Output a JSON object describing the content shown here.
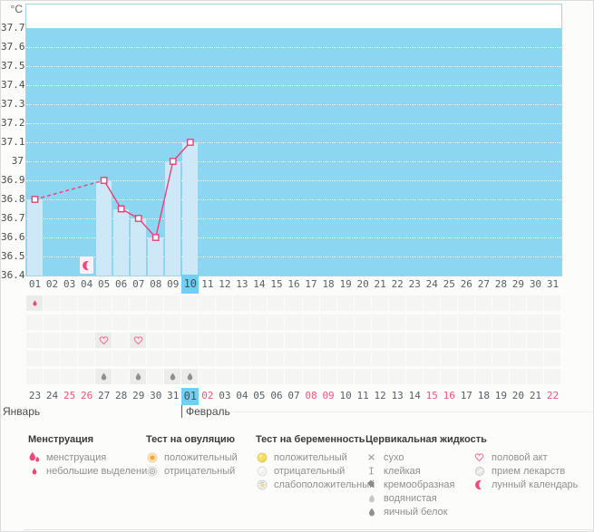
{
  "calendar": {
    "months": [
      "Январь",
      "Февраль"
    ],
    "dates": {
      "labels": [
        "23",
        "24",
        "25",
        "26",
        "27",
        "28",
        "29",
        "30",
        "31",
        "01",
        "02",
        "03",
        "04",
        "05",
        "06",
        "07",
        "08",
        "09",
        "10",
        "11",
        "12",
        "13",
        "14",
        "15",
        "16",
        "17",
        "18",
        "19",
        "20",
        "21",
        "22"
      ],
      "weekend_indices": [
        2,
        3,
        10,
        16,
        17,
        23,
        24,
        30
      ],
      "selected_index": 9
    }
  },
  "chart_data": {
    "type": "line",
    "ylabel": "°C",
    "ylim": [
      36.4,
      37.7
    ],
    "y_ticks": [
      "37.7",
      "37.6",
      "37.5",
      "37.4",
      "37.3",
      "37.2",
      "37.1",
      "37",
      "36.9",
      "36.8",
      "36.7",
      "36.6",
      "36.5",
      "36.4"
    ],
    "day_labels": [
      "01",
      "02",
      "03",
      "04",
      "05",
      "06",
      "07",
      "08",
      "09",
      "10",
      "11",
      "12",
      "13",
      "14",
      "15",
      "16",
      "17",
      "18",
      "19",
      "20",
      "21",
      "22",
      "23",
      "24",
      "25",
      "26",
      "27",
      "28",
      "29",
      "30",
      "31"
    ],
    "selected_day": 10,
    "temperatures": [
      36.8,
      null,
      null,
      null,
      36.9,
      36.75,
      36.7,
      36.6,
      37.0,
      37.1,
      null,
      null,
      null,
      null,
      null,
      null,
      null,
      null,
      null,
      null,
      null,
      null,
      null,
      null,
      null,
      null,
      null,
      null,
      null,
      null,
      null
    ],
    "dashed_gap_between_days": [
      1,
      5
    ],
    "moon_marker_day": 4,
    "grid": "dotted-white",
    "legend_position": "bottom"
  },
  "tracker": {
    "rows": [
      {
        "name": "menstruation",
        "cells": [
          {
            "day": 1,
            "icon": "drop-small"
          }
        ]
      },
      {
        "name": "ovulation-test",
        "cells": []
      },
      {
        "name": "intercourse",
        "cells": [
          {
            "day": 5,
            "icon": "heart"
          },
          {
            "day": 7,
            "icon": "heart"
          }
        ]
      },
      {
        "name": "medication",
        "cells": []
      },
      {
        "name": "cervical-fluid",
        "cells": [
          {
            "day": 5,
            "icon": "drop-dark"
          },
          {
            "day": 7,
            "icon": "drop-dark"
          },
          {
            "day": 9,
            "icon": "drop-dark"
          },
          {
            "day": 10,
            "icon": "drop-dark"
          }
        ]
      }
    ]
  },
  "legend": {
    "groups": [
      {
        "title": "Менструация",
        "items": [
          {
            "icon": "drops-two",
            "label": "менструация"
          },
          {
            "icon": "drop-small",
            "label": "небольшие выделения"
          }
        ]
      },
      {
        "title": "Тест на овуляцию",
        "items": [
          {
            "icon": "test-orange",
            "label": "положительный"
          },
          {
            "icon": "test-gray",
            "label": "отрицательный"
          }
        ]
      },
      {
        "title": "Тест на беременность",
        "items": [
          {
            "icon": "test-yellow",
            "label": "положительный"
          },
          {
            "icon": "test-white",
            "label": "отрицательный"
          },
          {
            "icon": "test-weak",
            "label": "слабоположительный"
          }
        ]
      },
      {
        "title": "Цервикальная жидкость",
        "items": [
          {
            "icon": "x-mark",
            "label": "сухо"
          },
          {
            "icon": "sticky",
            "label": "клейкая"
          },
          {
            "icon": "creamy",
            "label": "кремообразная"
          },
          {
            "icon": "drop-light",
            "label": "водянистая"
          },
          {
            "icon": "drop-dark",
            "label": "яичный белок"
          }
        ]
      },
      {
        "title": "",
        "items": [
          {
            "icon": "heart",
            "label": "половой акт"
          },
          {
            "icon": "pill",
            "label": "прием лекарств"
          },
          {
            "icon": "moon",
            "label": "лунный календарь"
          }
        ]
      }
    ]
  },
  "colors": {
    "plot_background": "#8dd6f1",
    "bar": "#cde9f7",
    "selected_day": "#72cef2",
    "line": "#ee3e76",
    "weekend_text": "#f4517f",
    "menstruation_pink": "#ec4a74",
    "plot_border": "#a7d4e4"
  }
}
